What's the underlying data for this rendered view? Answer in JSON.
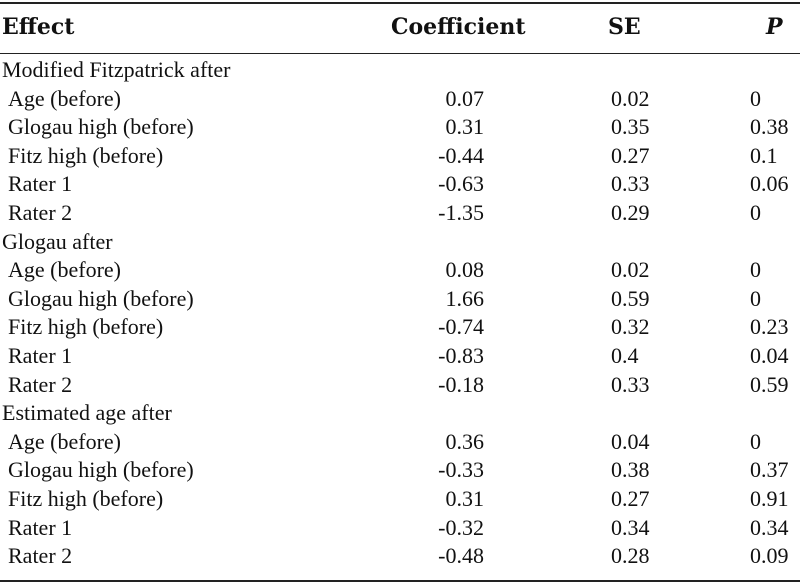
{
  "headers": {
    "effect": "Effect",
    "coefficient": "Coefficient",
    "se": "SE",
    "p": "P"
  },
  "groups": [
    {
      "title": "Modified Fitzpatrick after",
      "rows": [
        {
          "label": "Age (before)",
          "coef": "0.07",
          "se": "0.02",
          "p": "0"
        },
        {
          "label": "Glogau high (before)",
          "coef": "0.31",
          "se": "0.35",
          "p": "0.38"
        },
        {
          "label": "Fitz high (before)",
          "coef": "-0.44",
          "se": "0.27",
          "p": "0.1"
        },
        {
          "label": "Rater 1",
          "coef": "-0.63",
          "se": "0.33",
          "p": "0.06"
        },
        {
          "label": "Rater 2",
          "coef": "-1.35",
          "se": "0.29",
          "p": "0"
        }
      ]
    },
    {
      "title": "Glogau after",
      "rows": [
        {
          "label": "Age (before)",
          "coef": "0.08",
          "se": "0.02",
          "p": "0"
        },
        {
          "label": "Glogau high (before)",
          "coef": "1.66",
          "se": "0.59",
          "p": "0"
        },
        {
          "label": "Fitz high (before)",
          "coef": "-0.74",
          "se": "0.32",
          "p": "0.23"
        },
        {
          "label": "Rater 1",
          "coef": "-0.83",
          "se": "0.4",
          "p": "0.04"
        },
        {
          "label": "Rater 2",
          "coef": "-0.18",
          "se": "0.33",
          "p": "0.59"
        }
      ]
    },
    {
      "title": "Estimated age after",
      "rows": [
        {
          "label": "Age (before)",
          "coef": "0.36",
          "se": "0.04",
          "p": "0"
        },
        {
          "label": "Glogau high (before)",
          "coef": "-0.33",
          "se": "0.38",
          "p": "0.37"
        },
        {
          "label": "Fitz high (before)",
          "coef": "0.31",
          "se": "0.27",
          "p": "0.91"
        },
        {
          "label": "Rater 1",
          "coef": "-0.32",
          "se": "0.34",
          "p": "0.34"
        },
        {
          "label": "Rater 2",
          "coef": "-0.48",
          "se": "0.28",
          "p": "0.09"
        }
      ]
    }
  ]
}
